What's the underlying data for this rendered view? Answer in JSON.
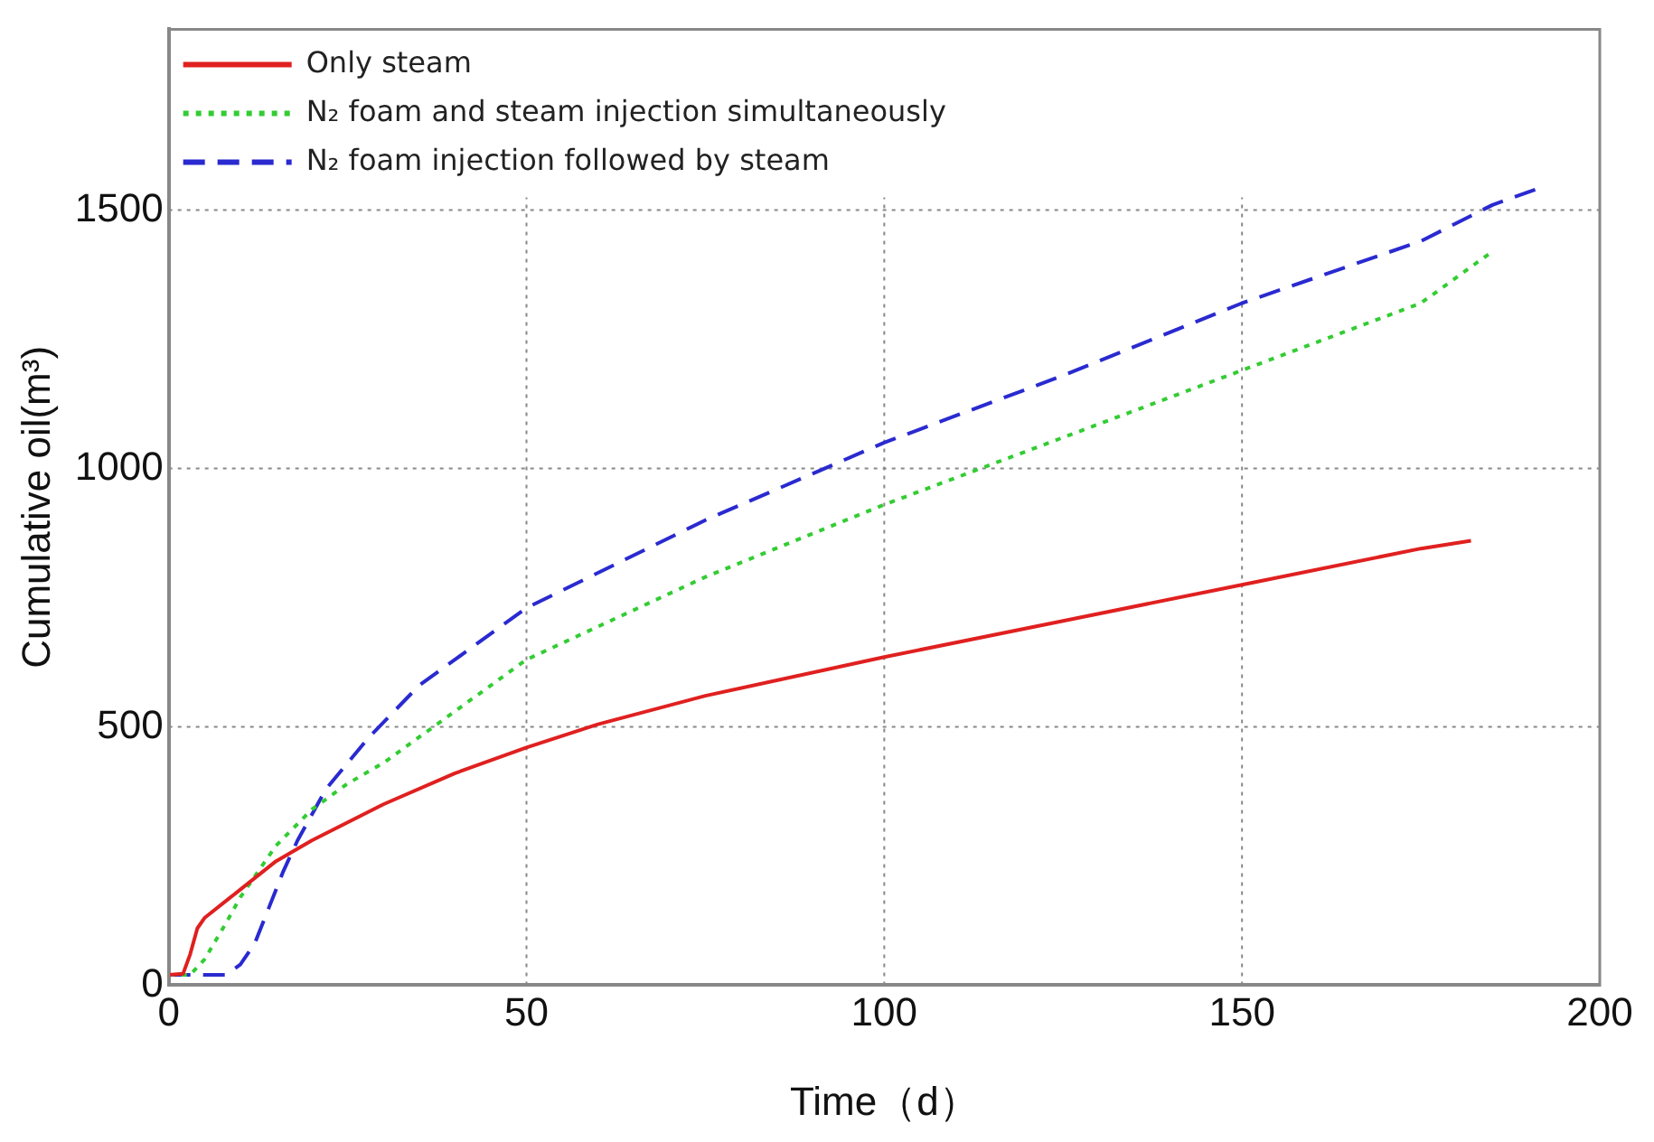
{
  "chart_data": {
    "type": "line",
    "xlabel": "Time（d）",
    "ylabel": "Cumulative oil(m³)",
    "xlim": [
      0,
      200
    ],
    "xticks": [
      0,
      50,
      100,
      150,
      200
    ],
    "ylim": [
      0,
      1850
    ],
    "yticks": [
      0,
      500,
      1000,
      1500
    ],
    "grid": true,
    "legend": "top left",
    "marker": "none",
    "series": [
      {
        "name": "Only steam",
        "color": "#e02020",
        "line_style": "solid",
        "x": [
          0,
          2,
          3,
          4,
          5,
          10,
          15,
          20,
          30,
          40,
          50,
          60,
          75,
          100,
          125,
          150,
          175,
          182
        ],
        "values": [
          20,
          22,
          60,
          110,
          130,
          185,
          240,
          280,
          350,
          410,
          460,
          505,
          560,
          635,
          705,
          775,
          845,
          860
        ]
      },
      {
        "name": "N₂ foam and steam injection simultaneously",
        "color": "#33cc33",
        "line_style": "dotted",
        "x": [
          0,
          3,
          5,
          8,
          10,
          15,
          20,
          25,
          30,
          40,
          50,
          75,
          100,
          125,
          150,
          175,
          185
        ],
        "values": [
          20,
          20,
          50,
          120,
          170,
          270,
          340,
          390,
          430,
          530,
          630,
          790,
          930,
          1060,
          1190,
          1320,
          1420
        ]
      },
      {
        "name": "N₂ foam injection followed by steam",
        "color": "#2a2ad0",
        "line_style": "dashed",
        "x": [
          0,
          8,
          10,
          12,
          14,
          16,
          18,
          22,
          28,
          35,
          50,
          75,
          100,
          125,
          150,
          175,
          185,
          192
        ],
        "values": [
          20,
          20,
          40,
          80,
          150,
          220,
          280,
          380,
          480,
          580,
          730,
          900,
          1050,
          1180,
          1320,
          1440,
          1510,
          1545
        ]
      }
    ]
  }
}
